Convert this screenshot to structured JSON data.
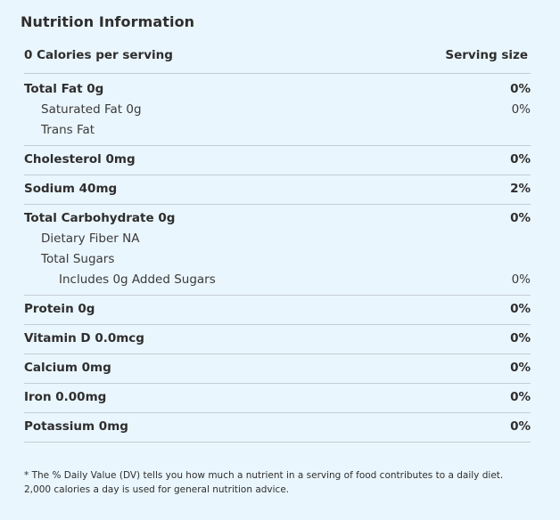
{
  "title": "Nutrition Information",
  "header": {
    "calories": "0 Calories per serving",
    "serving_size": "Serving size"
  },
  "nutrients": [
    {
      "rows": [
        {
          "label": "Total Fat 0g",
          "dv": "0%",
          "level": "main"
        },
        {
          "label": "Saturated Fat 0g",
          "dv": "0%",
          "level": "sub"
        },
        {
          "label": "Trans Fat",
          "dv": "",
          "level": "sub"
        }
      ]
    },
    {
      "rows": [
        {
          "label": "Cholesterol 0mg",
          "dv": "0%",
          "level": "main"
        }
      ]
    },
    {
      "rows": [
        {
          "label": "Sodium 40mg",
          "dv": "2%",
          "level": "main"
        }
      ]
    },
    {
      "rows": [
        {
          "label": "Total Carbohydrate 0g",
          "dv": "0%",
          "level": "main"
        },
        {
          "label": "Dietary Fiber NA",
          "dv": "",
          "level": "sub"
        },
        {
          "label": "Total Sugars",
          "dv": "",
          "level": "sub"
        },
        {
          "label": "Includes 0g Added Sugars",
          "dv": "0%",
          "level": "sub2"
        }
      ]
    },
    {
      "rows": [
        {
          "label": "Protein 0g",
          "dv": "0%",
          "level": "main"
        }
      ]
    },
    {
      "rows": [
        {
          "label": "Vitamin D 0.0mcg",
          "dv": "0%",
          "level": "main"
        }
      ]
    },
    {
      "rows": [
        {
          "label": "Calcium 0mg",
          "dv": "0%",
          "level": "main"
        }
      ]
    },
    {
      "rows": [
        {
          "label": "Iron 0.00mg",
          "dv": "0%",
          "level": "main"
        }
      ]
    },
    {
      "rows": [
        {
          "label": "Potassium 0mg",
          "dv": "0%",
          "level": "main"
        }
      ]
    }
  ],
  "footnote": "* The % Daily Value (DV) tells you how much a nutrient in a serving of food contributes to a daily diet. 2,000 calories a day is used for general nutrition advice."
}
